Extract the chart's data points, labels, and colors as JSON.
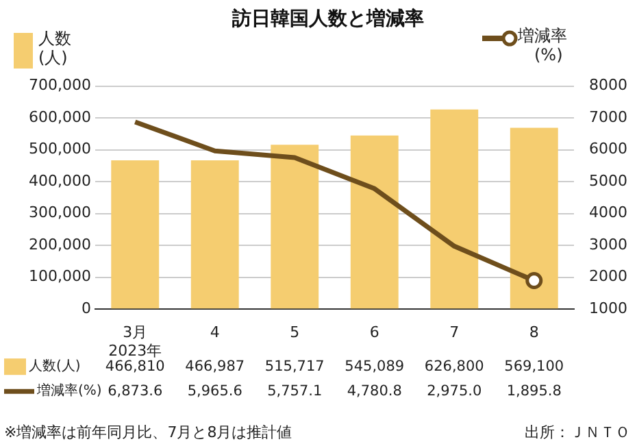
{
  "chart_data": {
    "type": "bar",
    "title": "訪日韓国人数と増減率",
    "ylabel": "人数\n(人)",
    "y2label": "増減率\n(%)",
    "categories": [
      "3月\n2023年",
      "4",
      "5",
      "6",
      "7",
      "8"
    ],
    "series": [
      {
        "name": "人数(人)",
        "color": "#f5cd70",
        "values": [
          466810,
          466987,
          515717,
          545089,
          626800,
          569100
        ],
        "value_labels": [
          "466,810",
          "466,987",
          "515,717",
          "545,089",
          "626,800",
          "569,100"
        ]
      },
      {
        "name": "増減率(%)",
        "type": "line",
        "axis": "y2",
        "color": "#6e4e1c",
        "values": [
          6873.6,
          5965.6,
          5757.1,
          4780.8,
          2975.0,
          1895.8
        ],
        "value_labels": [
          "6,873.6",
          "5,965.6",
          "5,757.1",
          "4,780.8",
          "2,975.0",
          "1,895.8"
        ]
      }
    ],
    "ylim": [
      0,
      700000
    ],
    "yticks": [
      0,
      {
        "value": 100000,
        "label": "100,000"
      },
      {
        "value": 200000,
        "label": "200,000"
      },
      {
        "value": 300000,
        "label": "300,000"
      },
      {
        "value": 400000,
        "label": "400,000"
      },
      {
        "value": 500000,
        "label": "500,000"
      },
      {
        "value": 600000,
        "label": "600,000"
      },
      {
        "value": 700000,
        "label": "700,000"
      }
    ],
    "y2lim": [
      1000,
      8000
    ],
    "y2ticks": [
      1000,
      2000,
      3000,
      4000,
      5000,
      6000,
      7000,
      8000
    ],
    "grid": "y",
    "legend": "bottom left",
    "line_style": "solid",
    "annotations": [
      "※増減率は前年同月比、7月と8月は推計値",
      "出所：ＪＮＴＯ"
    ]
  }
}
